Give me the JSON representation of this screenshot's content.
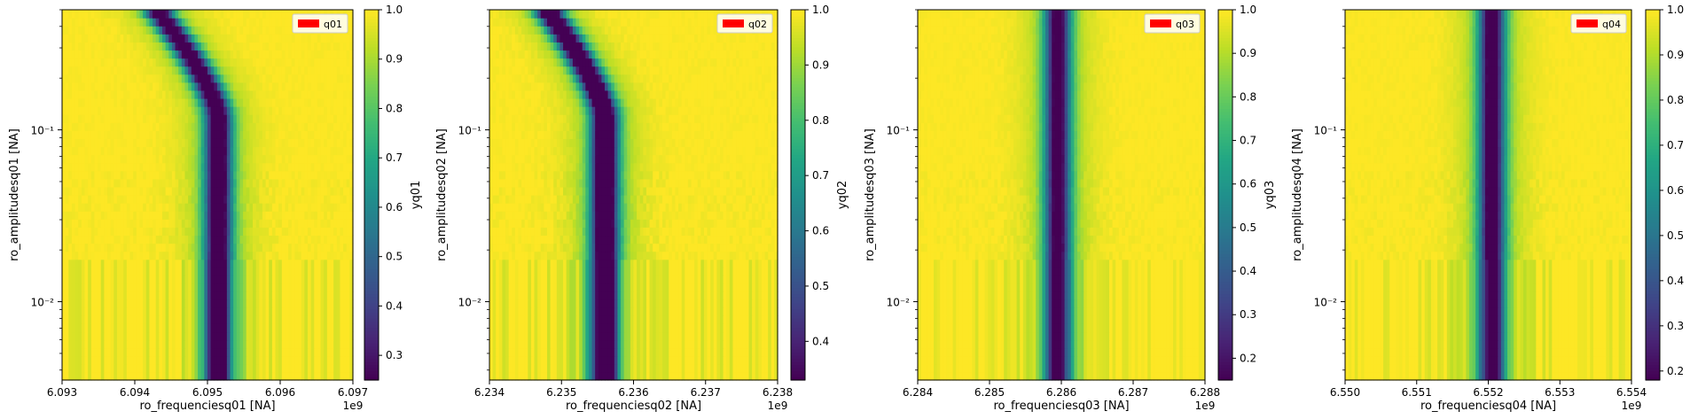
{
  "chart_data": [
    {
      "type": "heatmap",
      "xlabel": "ro_frequenciesq01 [NA]",
      "ylabel": "ro_amplitudesq01 [NA]",
      "colorbar_label": "yq01",
      "legend": "q01",
      "x_offset_label": "1e9",
      "xlim": [
        6.093,
        6.097
      ],
      "xticks": [
        "6.093",
        "6.094",
        "6.095",
        "6.096",
        "6.097"
      ],
      "y_scale": "log",
      "ylim": [
        0.0035,
        0.5
      ],
      "yticks": [
        "10⁻¹",
        "10⁻²"
      ],
      "clim": [
        0.25,
        1.0
      ],
      "cticks": [
        "1.0",
        "0.9",
        "0.8",
        "0.7",
        "0.6",
        "0.5",
        "0.4",
        "0.3"
      ],
      "dip_low_power": 6.09515,
      "dip_high_power": 6.0943
    },
    {
      "type": "heatmap",
      "xlabel": "ro_frequenciesq02 [NA]",
      "ylabel": "ro_amplitudesq02 [NA]",
      "colorbar_label": "yq02",
      "legend": "q02",
      "x_offset_label": "1e9",
      "xlim": [
        6.234,
        6.238
      ],
      "xticks": [
        "6.234",
        "6.235",
        "6.236",
        "6.237",
        "6.238"
      ],
      "y_scale": "log",
      "ylim": [
        0.0035,
        0.5
      ],
      "yticks": [
        "10⁻¹",
        "10⁻²"
      ],
      "clim": [
        0.33,
        1.0
      ],
      "cticks": [
        "1.0",
        "0.9",
        "0.8",
        "0.7",
        "0.6",
        "0.5",
        "0.4"
      ],
      "dip_low_power": 6.2356,
      "dip_high_power": 6.2348
    },
    {
      "type": "heatmap",
      "xlabel": "ro_frequenciesq03 [NA]",
      "ylabel": "ro_amplitudesq03 [NA]",
      "colorbar_label": "yq03",
      "legend": "q03",
      "x_offset_label": "1e9",
      "xlim": [
        6.284,
        6.288
      ],
      "xticks": [
        "6.284",
        "6.285",
        "6.286",
        "6.287",
        "6.288"
      ],
      "y_scale": "log",
      "ylim": [
        0.0035,
        0.5
      ],
      "yticks": [
        "10⁻¹",
        "10⁻²"
      ],
      "clim": [
        0.15,
        1.0
      ],
      "cticks": [
        "1.0",
        "0.9",
        "0.8",
        "0.7",
        "0.6",
        "0.5",
        "0.4",
        "0.3",
        "0.2"
      ],
      "dip_low_power": 6.28595,
      "dip_high_power": 6.28595
    },
    {
      "type": "heatmap",
      "xlabel": "ro_frequenciesq04 [NA]",
      "ylabel": "ro_amplitudesq04 [NA]",
      "colorbar_label": "yq04",
      "legend": "q04",
      "x_offset_label": "1e9",
      "xlim": [
        6.55,
        6.554
      ],
      "xticks": [
        "6.550",
        "6.551",
        "6.552",
        "6.553",
        "6.554"
      ],
      "y_scale": "log",
      "ylim": [
        0.0035,
        0.5
      ],
      "yticks": [
        "10⁻¹",
        "10⁻²"
      ],
      "clim": [
        0.18,
        1.0
      ],
      "cticks": [
        "1.0",
        "0.9",
        "0.8",
        "0.7",
        "0.6",
        "0.5",
        "0.4",
        "0.3",
        "0.2"
      ],
      "dip_low_power": 6.55205,
      "dip_high_power": 6.55205
    }
  ],
  "colors": {
    "legend_patch": "#ff0000"
  }
}
